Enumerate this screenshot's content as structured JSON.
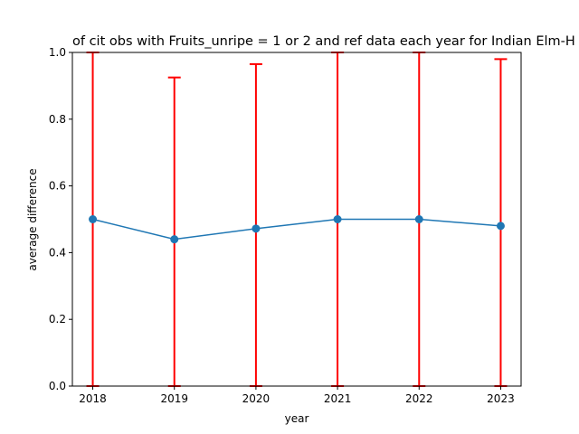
{
  "chart_data": {
    "type": "line",
    "title": "of cit obs with Fruits_unripe = 1 or 2 and ref data each year for Indian Elm-H",
    "xlabel": "year",
    "ylabel": "average difference",
    "x": [
      2018,
      2019,
      2020,
      2021,
      2022,
      2023
    ],
    "x_tick_labels": [
      "2018",
      "2019",
      "2020",
      "2021",
      "2022",
      "2023"
    ],
    "y_tick_labels": [
      "0.0",
      "0.2",
      "0.4",
      "0.6",
      "0.8",
      "1.0"
    ],
    "y_ticks": [
      0.0,
      0.2,
      0.4,
      0.6,
      0.8,
      1.0
    ],
    "ylim": [
      0,
      1
    ],
    "xlim": [
      2017.75,
      2023.25
    ],
    "grid": false,
    "series": [
      {
        "values": [
          0.5,
          0.44,
          0.472,
          0.5,
          0.5,
          0.48
        ],
        "color": "#1f77b4",
        "marker": "circle"
      }
    ],
    "error_bars": {
      "color": "#ff0000",
      "lower": [
        0.0,
        0.0,
        0.0,
        0.0,
        0.0,
        0.0
      ],
      "upper": [
        1.0,
        0.925,
        0.965,
        1.0,
        1.0,
        0.98
      ]
    }
  }
}
